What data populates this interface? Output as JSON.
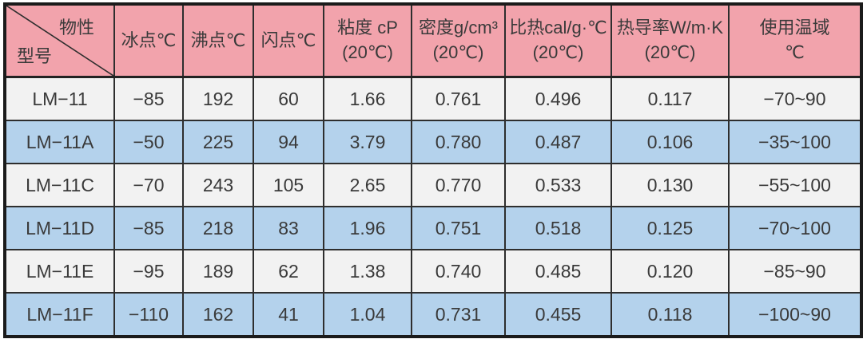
{
  "colors": {
    "header_bg": "#f2a3ac",
    "row_light_bg": "#f2f2f2",
    "row_blue_bg": "#b4d2ec",
    "outer_border": "#1b1b1b",
    "inner_border": "#2e2e2e",
    "text": "#3a3a3a"
  },
  "table": {
    "corner": {
      "top_right": "物性",
      "bottom_left": "型号"
    },
    "headers": [
      {
        "line1": "冰点℃",
        "line2": ""
      },
      {
        "line1": "沸点℃",
        "line2": ""
      },
      {
        "line1": "闪点℃",
        "line2": ""
      },
      {
        "line1": "粘度 cP",
        "line2": "(20℃)"
      },
      {
        "line1": "密度g/cm³",
        "line2": "(20℃)"
      },
      {
        "line1": "比热cal/g·℃",
        "line2": "(20℃)"
      },
      {
        "line1": "热导率W/m·K",
        "line2": "(20℃)"
      },
      {
        "line1": "使用温域",
        "line2": "℃"
      }
    ],
    "rows": [
      {
        "model": "LM−11",
        "values": [
          "−85",
          "192",
          "60",
          "1.66",
          "0.761",
          "0.496",
          "0.117",
          "−70~90"
        ]
      },
      {
        "model": "LM−11A",
        "values": [
          "−50",
          "225",
          "94",
          "3.79",
          "0.780",
          "0.487",
          "0.106",
          "−35~100"
        ]
      },
      {
        "model": "LM−11C",
        "values": [
          "−70",
          "243",
          "105",
          "2.65",
          "0.770",
          "0.533",
          "0.130",
          "−55~100"
        ]
      },
      {
        "model": "LM−11D",
        "values": [
          "−85",
          "218",
          "83",
          "1.96",
          "0.751",
          "0.518",
          "0.125",
          "−70~100"
        ]
      },
      {
        "model": "LM−11E",
        "values": [
          "−95",
          "189",
          "62",
          "1.38",
          "0.740",
          "0.485",
          "0.120",
          "−85~90"
        ]
      },
      {
        "model": "LM−11F",
        "values": [
          "−110",
          "162",
          "41",
          "1.04",
          "0.731",
          "0.455",
          "0.118",
          "−100~90"
        ]
      }
    ]
  },
  "chart_data": {
    "type": "table",
    "corner_labels": {
      "top": "物性",
      "bottom": "型号"
    },
    "columns": [
      "型号",
      "冰点℃",
      "沸点℃",
      "闪点℃",
      "粘度 cP (20℃)",
      "密度g/cm³ (20℃)",
      "比热cal/g·℃ (20℃)",
      "热导率W/m·K (20℃)",
      "使用温域℃"
    ],
    "rows": [
      [
        "LM−11",
        -85,
        192,
        60,
        1.66,
        0.761,
        0.496,
        0.117,
        "−70~90"
      ],
      [
        "LM−11A",
        -50,
        225,
        94,
        3.79,
        0.78,
        0.487,
        0.106,
        "−35~100"
      ],
      [
        "LM−11C",
        -70,
        243,
        105,
        2.65,
        0.77,
        0.533,
        0.13,
        "−55~100"
      ],
      [
        "LM−11D",
        -85,
        218,
        83,
        1.96,
        0.751,
        0.518,
        0.125,
        "−70~100"
      ],
      [
        "LM−11E",
        -95,
        189,
        62,
        1.38,
        0.74,
        0.485,
        0.12,
        "−85~90"
      ],
      [
        "LM−11F",
        -110,
        162,
        41,
        1.04,
        0.731,
        0.455,
        0.118,
        "−100~90"
      ]
    ]
  }
}
